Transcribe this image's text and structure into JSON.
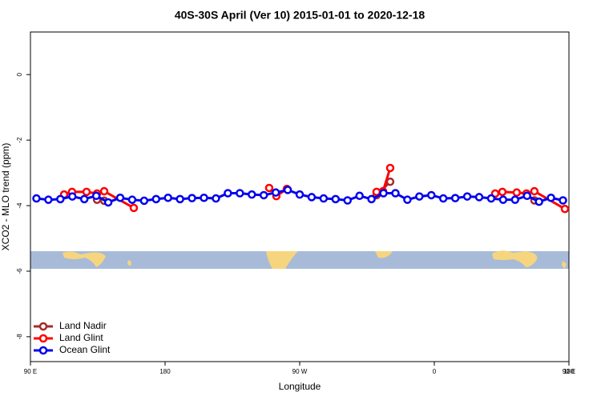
{
  "chart_data": {
    "type": "line",
    "title": "40S-30S April (Ver 10)   2015-01-01 to 2020-12-18",
    "x_label": "Longitude",
    "y_label": "XCO2 - MLO trend (ppm)",
    "xlim": [
      90,
      450
    ],
    "ylim": [
      -8.76,
      1.3
    ],
    "xticks": [
      {
        "value": 90,
        "label": "90 E"
      },
      {
        "value": 180,
        "label": "180"
      },
      {
        "value": 270,
        "label": "90 W"
      },
      {
        "value": 360,
        "label": "0"
      },
      {
        "value": 450,
        "label": "90 E"
      },
      {
        "value": 540,
        "label": "180"
      }
    ],
    "yticks": [
      0,
      -2,
      -4,
      -6,
      -8
    ],
    "legend": "bottom-left",
    "series": [
      {
        "name": "Land Nadir",
        "color": "#a52a2a",
        "x": [
          134.5,
          139.3,
          null,
          321.4,
          330.5,
          null,
          426.9
        ],
        "values": [
          -3.82,
          -3.85,
          null,
          -3.68,
          -3.27,
          null,
          -3.84
        ]
      },
      {
        "name": "Land Glint",
        "color": "#ff0000",
        "x": [
          112.5,
          117.8,
          127.5,
          134.5,
          139.3,
          159.1,
          null,
          249.6,
          254.4,
          261.4,
          null,
          321.4,
          325.7,
          330.5,
          null,
          400.7,
          405.5,
          415.1,
          421.6,
          426.9,
          447.3
        ],
        "values": [
          -3.66,
          -3.58,
          -3.58,
          -3.63,
          -3.56,
          -4.07,
          null,
          -3.46,
          -3.71,
          -3.49,
          null,
          -3.58,
          -3.56,
          -2.85,
          null,
          -3.63,
          -3.58,
          -3.6,
          -3.63,
          -3.56,
          -4.1
        ]
      },
      {
        "name": "Ocean Glint",
        "color": "#0000ee",
        "x": [
          94,
          102,
          110,
          118,
          126,
          134,
          142,
          150,
          158,
          166,
          174,
          182,
          190,
          198,
          206,
          214,
          222,
          230,
          238,
          246,
          254,
          262,
          270,
          278,
          286,
          294,
          302,
          310,
          318,
          326,
          334,
          342,
          350,
          358,
          366,
          374,
          382,
          390,
          398,
          406,
          414,
          422,
          430,
          438,
          446
        ],
        "values": [
          -3.78,
          -3.82,
          -3.8,
          -3.72,
          -3.8,
          -3.7,
          -3.9,
          -3.76,
          -3.82,
          -3.85,
          -3.8,
          -3.76,
          -3.8,
          -3.77,
          -3.76,
          -3.78,
          -3.62,
          -3.62,
          -3.66,
          -3.68,
          -3.6,
          -3.52,
          -3.66,
          -3.74,
          -3.78,
          -3.8,
          -3.84,
          -3.7,
          -3.8,
          -3.62,
          -3.62,
          -3.82,
          -3.72,
          -3.68,
          -3.78,
          -3.77,
          -3.72,
          -3.74,
          -3.78,
          -3.82,
          -3.82,
          -3.7,
          -3.88,
          -3.76,
          -3.84
        ]
      }
    ]
  }
}
